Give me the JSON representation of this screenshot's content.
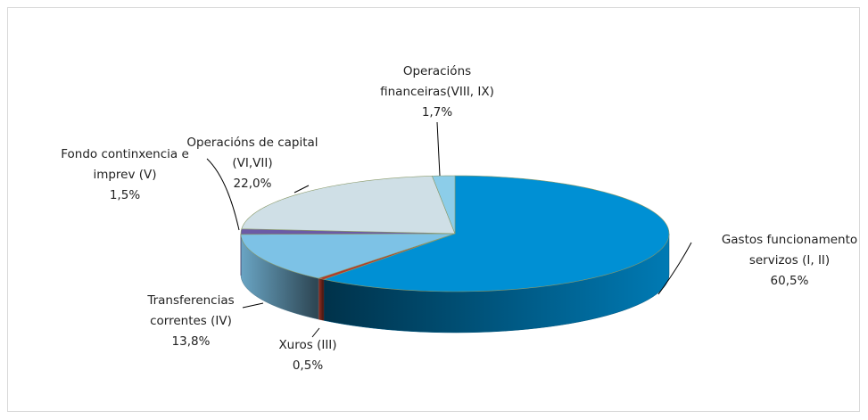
{
  "chart_data": {
    "type": "pie",
    "categories": [
      "Gastos funcionamento servizos (I, II)",
      "Xuros (III)",
      "Transferencias correntes (IV)",
      "Fondo continxencia e imprev (V)",
      "Operacións de capital (VI,VII)",
      "Operacións financeiras(VIII, IX)"
    ],
    "values": [
      60.5,
      0.5,
      13.8,
      1.5,
      22.0,
      1.7
    ],
    "value_labels": [
      "60,5%",
      "0,5%",
      "13,8%",
      "1,5%",
      "22,0%",
      "1,7%"
    ],
    "colors": [
      "#0090d4",
      "#b23a2a",
      "#7dc2e6",
      "#6b5ba6",
      "#cfdfe6",
      "#8ccde9"
    ]
  }
}
